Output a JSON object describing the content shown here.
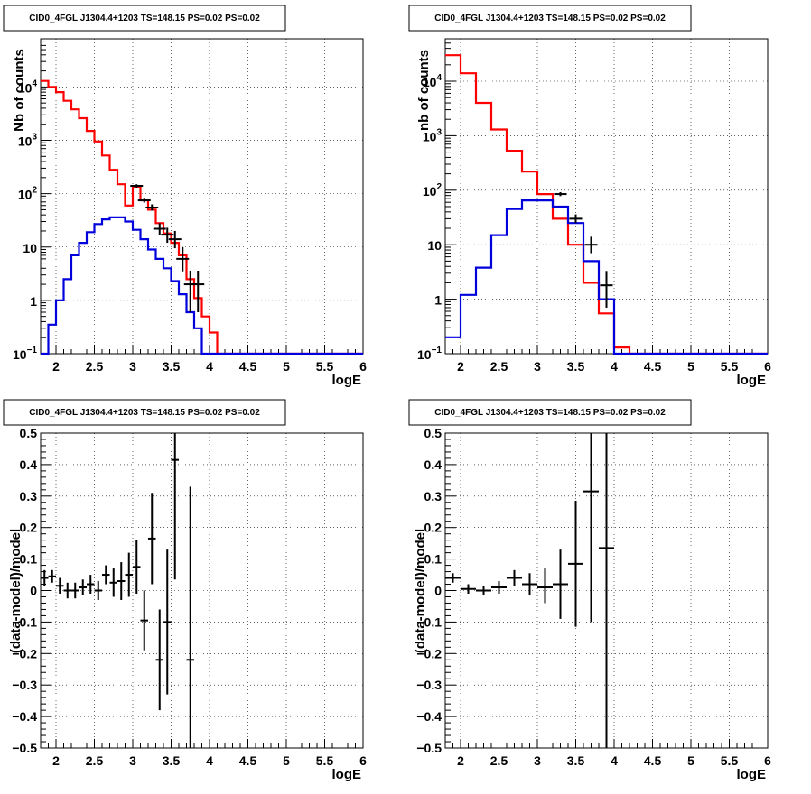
{
  "chart_data": [
    {
      "type": "histogram",
      "scale": "log",
      "title": "CID0_4FGL J1304.4+1203 TS=148.15 PS=0.02 PS=0.02",
      "xlabel": "logE",
      "ylabel": "Nb of counts",
      "xlim": [
        1.8,
        6.0
      ],
      "ylim": [
        0.1,
        80000
      ],
      "grid": true,
      "x_ticks": [
        2,
        2.5,
        3,
        3.5,
        4,
        4.5,
        5,
        5.5,
        6
      ],
      "x_tick_labels": [
        "2",
        "2.5",
        "3",
        "3.5",
        "4",
        "4.5",
        "5",
        "5.5",
        "6"
      ],
      "y_ticks": [
        0.1,
        1,
        10,
        100,
        1000,
        10000
      ],
      "y_tick_labels": [
        {
          "base": "10",
          "exp": "−1"
        },
        {
          "base": "1",
          "exp": ""
        },
        {
          "base": "10",
          "exp": ""
        },
        {
          "base": "10",
          "exp": "2"
        },
        {
          "base": "10",
          "exp": "3"
        },
        {
          "base": "10",
          "exp": "4"
        }
      ],
      "bin_edges": [
        1.8,
        1.9,
        2.0,
        2.1,
        2.2,
        2.3,
        2.4,
        2.5,
        2.6,
        2.7,
        2.8,
        2.9,
        3.0,
        3.1,
        3.2,
        3.3,
        3.4,
        3.5,
        3.6,
        3.7,
        3.8,
        3.9,
        4.0,
        4.1,
        4.2,
        4.3,
        4.4,
        4.5,
        4.6,
        4.7,
        4.8,
        4.9,
        5.0,
        5.1,
        5.2,
        5.3,
        5.4,
        5.5,
        5.6,
        5.7,
        5.8,
        5.9,
        6.0
      ],
      "series": [
        {
          "color": "#ff0000",
          "values": [
            13000,
            10000,
            8000,
            5500,
            3800,
            2600,
            1500,
            950,
            520,
            280,
            150,
            60,
            135,
            75,
            50,
            28,
            18,
            12,
            7,
            2.5,
            1.1,
            0.5,
            0.25,
            0.1,
            0.1,
            0.1,
            0.1,
            0.1,
            0.1,
            0.1,
            0.1,
            0.1,
            0.1,
            0.1,
            0.1,
            0.1,
            0.1,
            0.1,
            0.1,
            0.1,
            0.1,
            0.1
          ]
        },
        {
          "color": "#0000dd",
          "values": [
            0.1,
            0.35,
            1.0,
            2.5,
            7,
            12,
            19,
            27,
            33,
            36,
            36,
            30,
            21,
            14,
            9,
            6,
            4,
            2.3,
            1.3,
            0.6,
            0.3,
            0.1,
            0.1,
            0.1,
            0.1,
            0.1,
            0.1,
            0.1,
            0.1,
            0.1,
            0.1,
            0.1,
            0.1,
            0.1,
            0.1,
            0.1,
            0.1,
            0.1,
            0.1,
            0.1,
            0.1,
            0.1
          ]
        }
      ],
      "data_points": [
        {
          "x": 3.05,
          "y": 140,
          "ylo": 130,
          "yhi": 150
        },
        {
          "x": 3.15,
          "y": 75,
          "ylo": 68,
          "yhi": 84
        },
        {
          "x": 3.25,
          "y": 55,
          "ylo": 48,
          "yhi": 63
        },
        {
          "x": 3.35,
          "y": 22,
          "ylo": 17,
          "yhi": 28
        },
        {
          "x": 3.45,
          "y": 17,
          "ylo": 12,
          "yhi": 23
        },
        {
          "x": 3.55,
          "y": 14,
          "ylo": 9.5,
          "yhi": 20
        },
        {
          "x": 3.65,
          "y": 6,
          "ylo": 3.5,
          "yhi": 10
        },
        {
          "x": 3.75,
          "y": 2,
          "ylo": 0.6,
          "yhi": 3.6
        },
        {
          "x": 3.85,
          "y": 2,
          "ylo": 0.6,
          "yhi": 3.6
        }
      ]
    },
    {
      "type": "histogram",
      "scale": "log",
      "title": "CID0_4FGL J1304.4+1203 TS=148.15 PS=0.02 PS=0.02",
      "xlabel": "logE",
      "ylabel": "nb of counts",
      "xlim": [
        1.8,
        6.0
      ],
      "ylim": [
        0.1,
        60000
      ],
      "grid": true,
      "x_ticks": [
        2,
        2.5,
        3,
        3.5,
        4,
        4.5,
        5,
        5.5,
        6
      ],
      "x_tick_labels": [
        "2",
        "2.5",
        "3",
        "3.5",
        "4",
        "4.5",
        "5",
        "5.5",
        "6"
      ],
      "y_ticks": [
        0.1,
        1,
        10,
        100,
        1000,
        10000
      ],
      "y_tick_labels": [
        {
          "base": "10",
          "exp": "−1"
        },
        {
          "base": "1",
          "exp": ""
        },
        {
          "base": "10",
          "exp": ""
        },
        {
          "base": "10",
          "exp": "2"
        },
        {
          "base": "10",
          "exp": "3"
        },
        {
          "base": "10",
          "exp": "4"
        }
      ],
      "bin_edges": [
        1.8,
        2.0,
        2.2,
        2.4,
        2.6,
        2.8,
        3.0,
        3.2,
        3.4,
        3.6,
        3.8,
        4.0,
        4.2,
        4.4,
        4.6,
        4.8,
        5.0,
        5.2,
        5.4,
        5.6,
        5.8,
        6.0
      ],
      "series": [
        {
          "color": "#ff0000",
          "values": [
            30000,
            14000,
            4000,
            1300,
            530,
            220,
            85,
            30,
            10,
            2,
            0.55,
            0.13,
            0.1,
            0.1,
            0.1,
            0.1,
            0.1,
            0.1,
            0.1,
            0.1,
            0.1
          ]
        },
        {
          "color": "#0000dd",
          "values": [
            0.2,
            1.2,
            3.8,
            15,
            45,
            65,
            65,
            50,
            25,
            5,
            1.0,
            0.1,
            0.1,
            0.1,
            0.1,
            0.1,
            0.1,
            0.1,
            0.1,
            0.1,
            0.1
          ]
        }
      ],
      "data_points": [
        {
          "x": 3.3,
          "y": 85,
          "ylo": 78,
          "yhi": 92
        },
        {
          "x": 3.5,
          "y": 30,
          "ylo": 25,
          "yhi": 36
        },
        {
          "x": 3.7,
          "y": 10,
          "ylo": 7,
          "yhi": 14
        },
        {
          "x": 3.9,
          "y": 1.8,
          "ylo": 0.7,
          "yhi": 3.3
        }
      ]
    },
    {
      "type": "scatter",
      "title": "CID0_4FGL J1304.4+1203 TS=148.15 PS=0.02 PS=0.02",
      "xlabel": "logE",
      "ylabel": "(data-model)/model",
      "xlim": [
        1.8,
        6.0
      ],
      "ylim": [
        -0.5,
        0.5
      ],
      "grid": true,
      "x_ticks": [
        2,
        2.5,
        3,
        3.5,
        4,
        4.5,
        5,
        5.5,
        6
      ],
      "x_tick_labels": [
        "2",
        "2.5",
        "3",
        "3.5",
        "4",
        "4.5",
        "5",
        "5.5",
        "6"
      ],
      "y_ticks": [
        -0.5,
        -0.4,
        -0.3,
        -0.2,
        -0.1,
        0,
        0.1,
        0.2,
        0.3,
        0.4,
        0.5
      ],
      "y_tick_labels": [
        "−0.5",
        "−0.4",
        "−0.3",
        "−0.2",
        "−0.1",
        "0",
        "0.1",
        "0.2",
        "0.3",
        "0.4",
        "0.5"
      ],
      "points": [
        {
          "x": 1.85,
          "y": 0.04,
          "ylo": 0.015,
          "yhi": 0.065,
          "xerr": 0.05
        },
        {
          "x": 1.95,
          "y": 0.045,
          "ylo": 0.025,
          "yhi": 0.065,
          "xerr": 0.05
        },
        {
          "x": 2.05,
          "y": 0.015,
          "ylo": -0.01,
          "yhi": 0.04,
          "xerr": 0.05
        },
        {
          "x": 2.15,
          "y": 0.0,
          "ylo": -0.025,
          "yhi": 0.025,
          "xerr": 0.05
        },
        {
          "x": 2.25,
          "y": 0.0,
          "ylo": -0.025,
          "yhi": 0.025,
          "xerr": 0.05
        },
        {
          "x": 2.35,
          "y": 0.01,
          "ylo": -0.015,
          "yhi": 0.035,
          "xerr": 0.05
        },
        {
          "x": 2.45,
          "y": 0.02,
          "ylo": -0.01,
          "yhi": 0.05,
          "xerr": 0.05
        },
        {
          "x": 2.55,
          "y": 0.0,
          "ylo": -0.03,
          "yhi": 0.03,
          "xerr": 0.05
        },
        {
          "x": 2.65,
          "y": 0.05,
          "ylo": 0.02,
          "yhi": 0.08,
          "xerr": 0.05
        },
        {
          "x": 2.75,
          "y": 0.025,
          "ylo": -0.02,
          "yhi": 0.07,
          "xerr": 0.05
        },
        {
          "x": 2.85,
          "y": 0.03,
          "ylo": -0.03,
          "yhi": 0.09,
          "xerr": 0.05
        },
        {
          "x": 2.95,
          "y": 0.05,
          "ylo": -0.02,
          "yhi": 0.12,
          "xerr": 0.05
        },
        {
          "x": 3.05,
          "y": 0.075,
          "ylo": -0.01,
          "yhi": 0.16,
          "xerr": 0.05
        },
        {
          "x": 3.15,
          "y": -0.095,
          "ylo": -0.19,
          "yhi": 0.0,
          "xerr": 0.05
        },
        {
          "x": 3.25,
          "y": 0.165,
          "ylo": 0.02,
          "yhi": 0.31,
          "xerr": 0.05
        },
        {
          "x": 3.35,
          "y": -0.22,
          "ylo": -0.38,
          "yhi": -0.06,
          "xerr": 0.05
        },
        {
          "x": 3.45,
          "y": -0.1,
          "ylo": -0.33,
          "yhi": 0.13,
          "xerr": 0.05
        },
        {
          "x": 3.55,
          "y": 0.415,
          "ylo": 0.035,
          "yhi": 0.5,
          "xerr": 0.05
        },
        {
          "x": 3.75,
          "y": -0.22,
          "ylo": -0.5,
          "yhi": 0.33,
          "xerr": 0.05
        }
      ]
    },
    {
      "type": "scatter",
      "title": "CID0_4FGL J1304.4+1203 TS=148.15 PS=0.02 PS=0.02",
      "xlabel": "logE",
      "ylabel": "(data-model)/model",
      "xlim": [
        1.8,
        6.0
      ],
      "ylim": [
        -0.5,
        0.5
      ],
      "grid": true,
      "x_ticks": [
        2,
        2.5,
        3,
        3.5,
        4,
        4.5,
        5,
        5.5,
        6
      ],
      "x_tick_labels": [
        "2",
        "2.5",
        "3",
        "3.5",
        "4",
        "4.5",
        "5",
        "5.5",
        "6"
      ],
      "y_ticks": [
        -0.5,
        -0.4,
        -0.3,
        -0.2,
        -0.1,
        0,
        0.1,
        0.2,
        0.3,
        0.4,
        0.5
      ],
      "y_tick_labels": [
        "−0.5",
        "−0.4",
        "−0.3",
        "−0.2",
        "−0.1",
        "0",
        "0.1",
        "0.2",
        "0.3",
        "0.4",
        "0.5"
      ],
      "points": [
        {
          "x": 1.9,
          "y": 0.04,
          "ylo": 0.025,
          "yhi": 0.055,
          "xerr": 0.1
        },
        {
          "x": 2.1,
          "y": 0.005,
          "ylo": -0.01,
          "yhi": 0.02,
          "xerr": 0.1
        },
        {
          "x": 2.3,
          "y": 0.0,
          "ylo": -0.015,
          "yhi": 0.015,
          "xerr": 0.1
        },
        {
          "x": 2.5,
          "y": 0.01,
          "ylo": -0.01,
          "yhi": 0.03,
          "xerr": 0.1
        },
        {
          "x": 2.7,
          "y": 0.04,
          "ylo": 0.015,
          "yhi": 0.065,
          "xerr": 0.1
        },
        {
          "x": 2.9,
          "y": 0.02,
          "ylo": -0.015,
          "yhi": 0.055,
          "xerr": 0.1
        },
        {
          "x": 3.1,
          "y": 0.01,
          "ylo": -0.04,
          "yhi": 0.07,
          "xerr": 0.1
        },
        {
          "x": 3.3,
          "y": 0.02,
          "ylo": -0.09,
          "yhi": 0.13,
          "xerr": 0.1
        },
        {
          "x": 3.5,
          "y": 0.085,
          "ylo": -0.115,
          "yhi": 0.285,
          "xerr": 0.1
        },
        {
          "x": 3.7,
          "y": 0.315,
          "ylo": -0.1,
          "yhi": 0.5,
          "xerr": 0.1
        },
        {
          "x": 3.9,
          "y": 0.135,
          "ylo": -0.5,
          "yhi": 0.5,
          "xerr": 0.1
        }
      ]
    }
  ]
}
